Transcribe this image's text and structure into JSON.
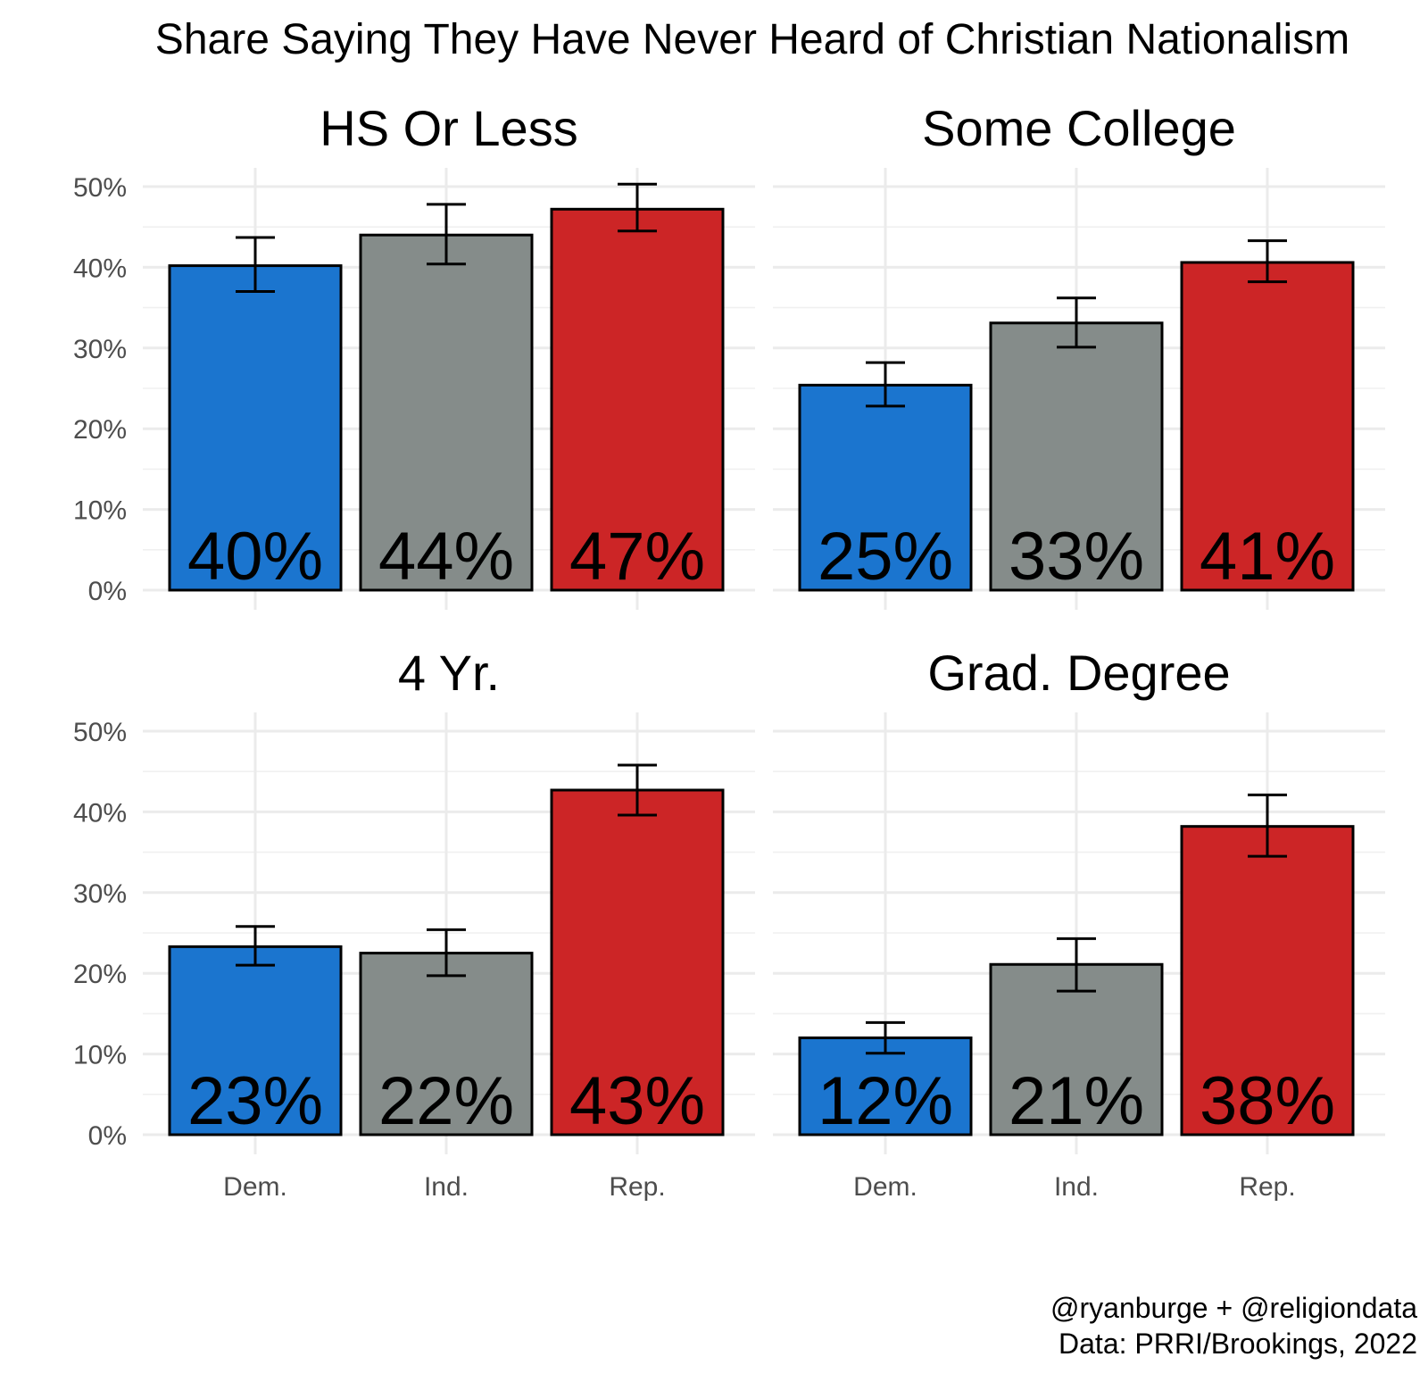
{
  "chart_data": {
    "type": "bar",
    "title": "Share Saying They Have Never Heard of Christian Nationalism",
    "categories": [
      "Dem.",
      "Ind.",
      "Rep."
    ],
    "colors": [
      "#1B75CF",
      "#858C8A",
      "#CC2526"
    ],
    "y_ticks": [
      "0%",
      "10%",
      "20%",
      "30%",
      "40%",
      "50%"
    ],
    "ylim": [
      0,
      0.5
    ],
    "panels": [
      {
        "title": "HS Or Less",
        "values": [
          0.402,
          0.44,
          0.472
        ],
        "labels": [
          "40%",
          "44%",
          "47%"
        ],
        "ci_low": [
          0.37,
          0.404,
          0.445
        ],
        "ci_high": [
          0.437,
          0.478,
          0.503
        ]
      },
      {
        "title": "Some College",
        "values": [
          0.254,
          0.331,
          0.406
        ],
        "labels": [
          "25%",
          "33%",
          "41%"
        ],
        "ci_low": [
          0.228,
          0.301,
          0.382
        ],
        "ci_high": [
          0.282,
          0.362,
          0.433
        ]
      },
      {
        "title": "4 Yr.",
        "values": [
          0.233,
          0.225,
          0.427
        ],
        "labels": [
          "23%",
          "22%",
          "43%"
        ],
        "ci_low": [
          0.21,
          0.197,
          0.396
        ],
        "ci_high": [
          0.258,
          0.254,
          0.458
        ]
      },
      {
        "title": "Grad. Degree",
        "values": [
          0.12,
          0.211,
          0.382
        ],
        "labels": [
          "12%",
          "21%",
          "38%"
        ],
        "ci_low": [
          0.101,
          0.178,
          0.345
        ],
        "ci_high": [
          0.139,
          0.243,
          0.421
        ]
      }
    ]
  },
  "caption": {
    "line1": "@ryanburge + @religiondata",
    "line2": "Data: PRRI/Brookings, 2022"
  }
}
